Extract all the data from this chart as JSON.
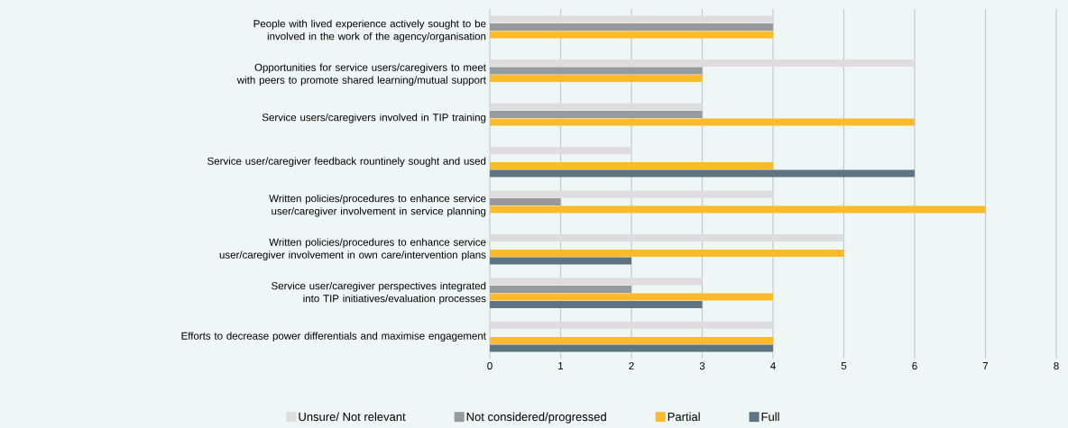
{
  "chart_data": {
    "type": "bar",
    "orientation": "horizontal",
    "categories": [
      "People with lived experience actively sought to be involved in the work of the agency/organisation",
      "Opportunities for service users/caregivers to meet with peers to promote shared learning/mutual support",
      "Service users/caregivers involved in TIP training",
      "Service user/caregiver feedback rountinely sought and used",
      "Written policies/procedures to enhance service user/caregiver involvement in service planning",
      "Written policies/procedures to enhance service user/caregiver involvement in own care/intervention plans",
      "Service user/caregiver perspectives integrated into TIP initiatives/evaluation processes",
      "Efforts to decrease power differentials and maximise engagement"
    ],
    "series": [
      {
        "name": "Unsure/ Not relevant",
        "color": "#dedcdc",
        "values": [
          4,
          6,
          3,
          2,
          4,
          5,
          3,
          4
        ]
      },
      {
        "name": "Not considered/progressed",
        "color": "#979a9c",
        "values": [
          4,
          3,
          3,
          null,
          1,
          null,
          2,
          null
        ]
      },
      {
        "name": "Partial",
        "color": "#fdbb2c",
        "values": [
          4,
          3,
          6,
          4,
          7,
          5,
          4,
          4
        ]
      },
      {
        "name": "Full",
        "color": "#5d7482",
        "values": [
          null,
          null,
          null,
          6,
          null,
          2,
          3,
          4
        ]
      }
    ],
    "xlim": [
      0,
      8
    ],
    "xticks": [
      0,
      1,
      2,
      3,
      4,
      5,
      6,
      7,
      8
    ],
    "grid": "x",
    "legend": "bottom"
  }
}
